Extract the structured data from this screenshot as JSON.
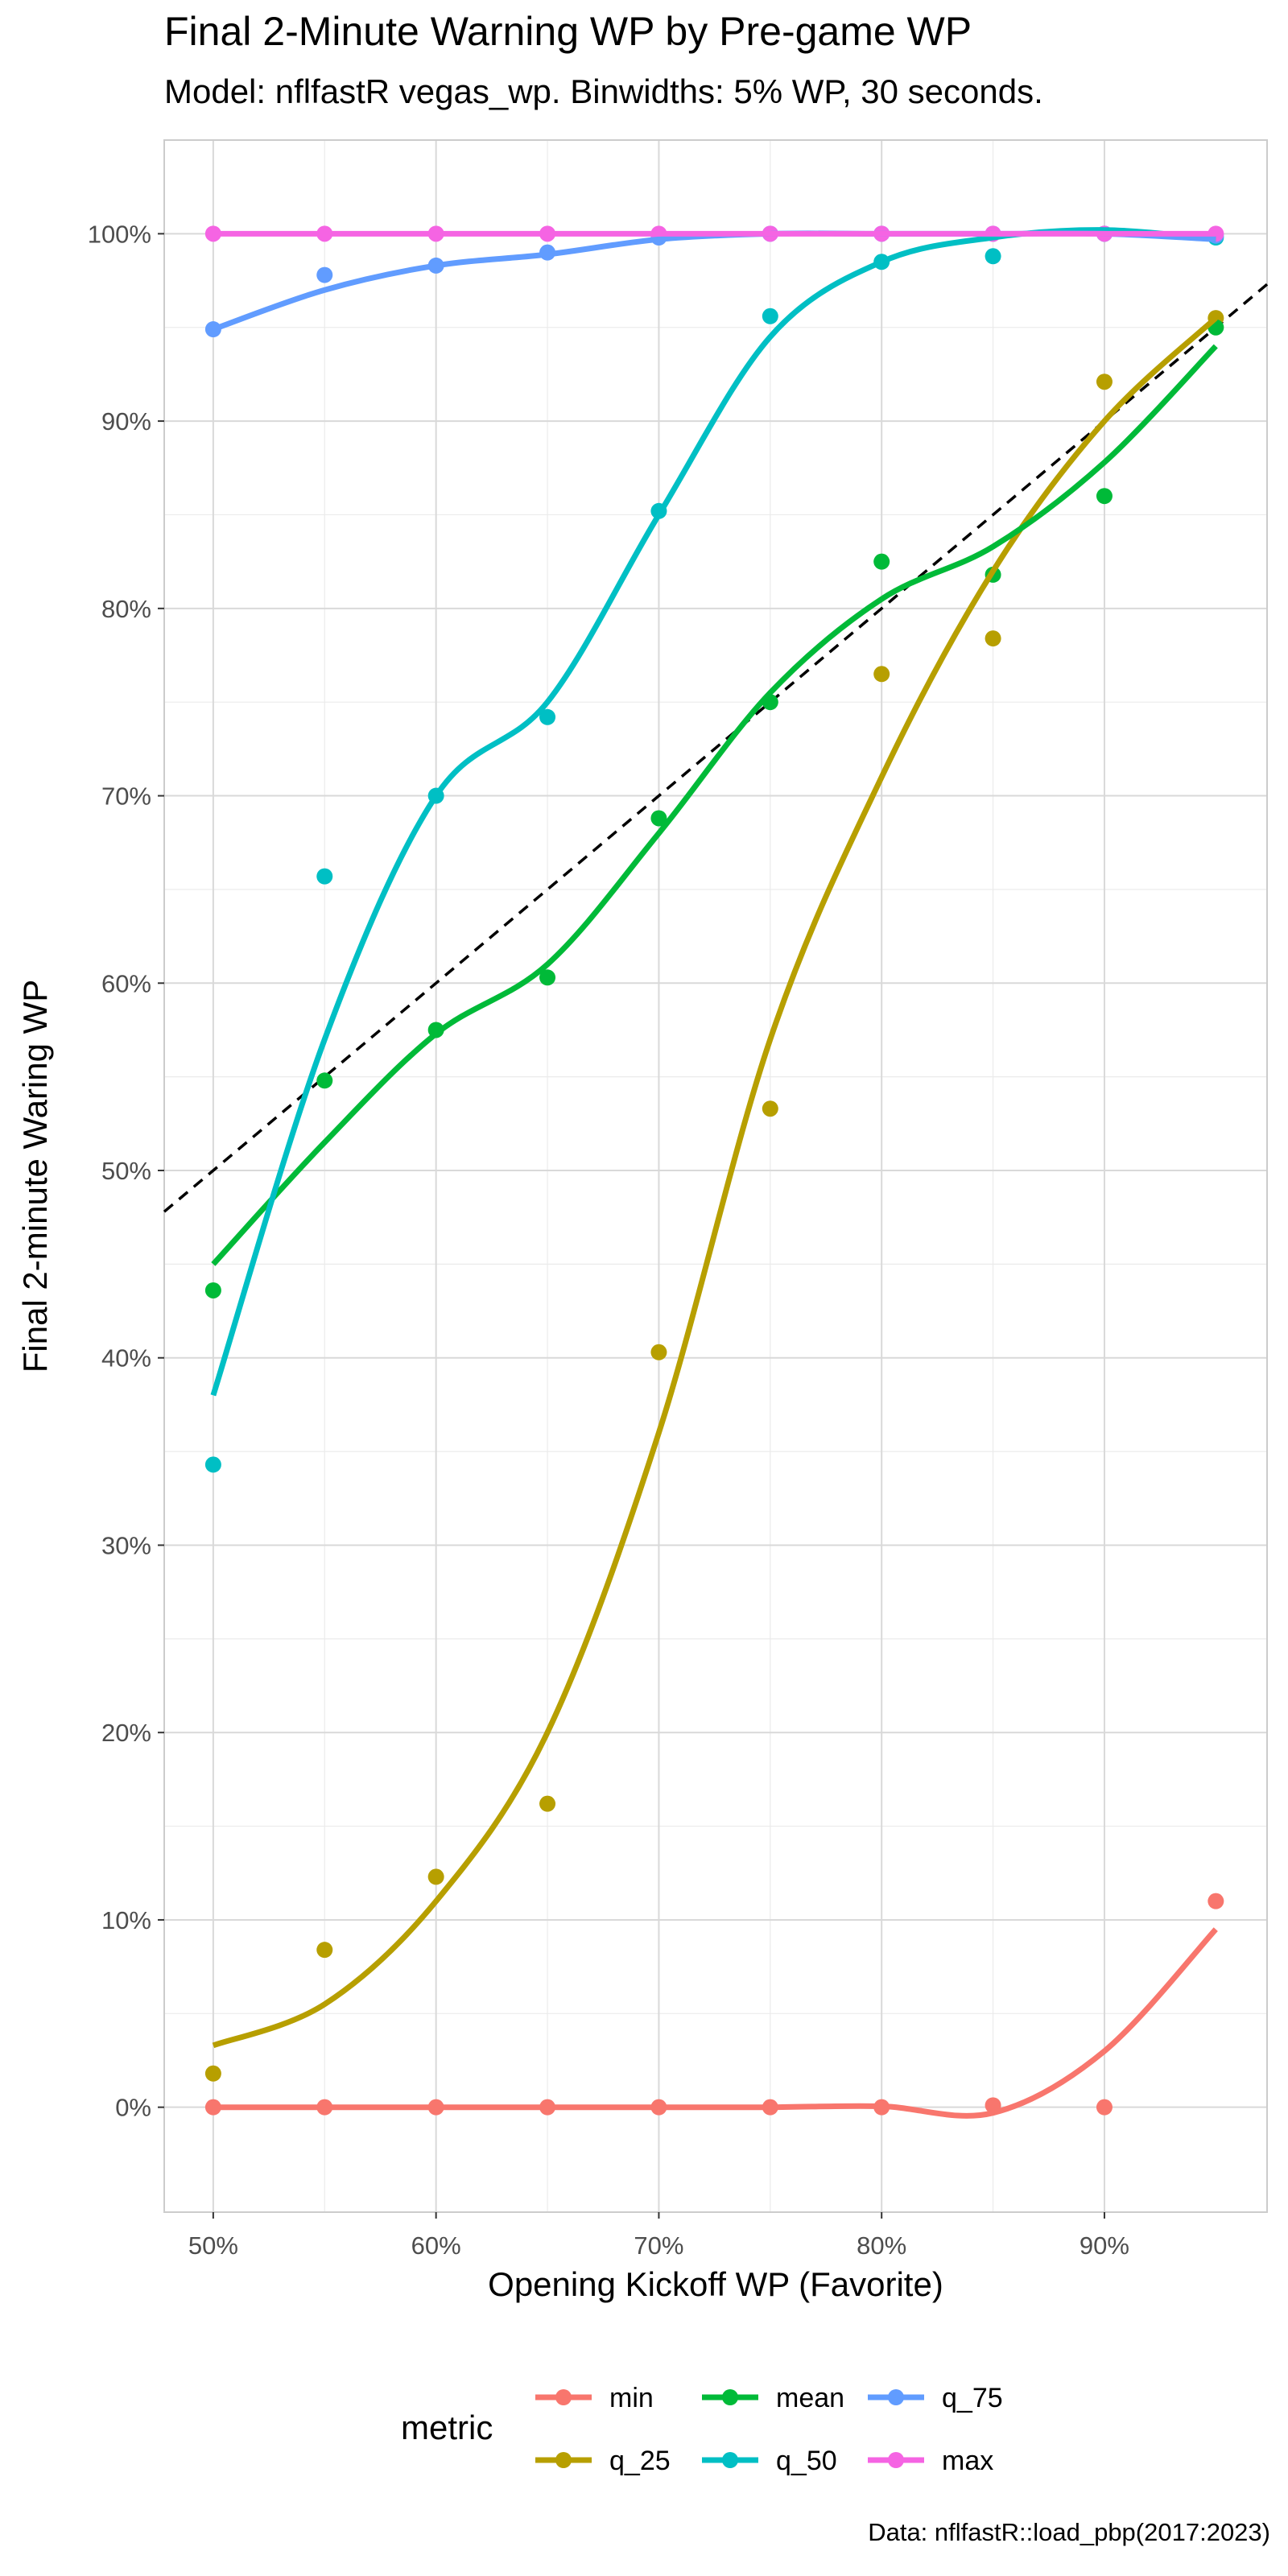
{
  "chart_data": {
    "type": "scatter",
    "title": "Final 2-Minute Warning WP by Pre-game WP",
    "subtitle": "Model: nflfastR vegas_wp. Binwidths: 5% WP, 30 seconds.",
    "caption": "Data: nflfastR::load_pbp(2017:2023)",
    "xlabel": "Opening Kickoff WP (Favorite)",
    "ylabel": "Final 2-minute Waring WP",
    "xlim": [
      0.478,
      0.973
    ],
    "ylim": [
      -0.056,
      1.05
    ],
    "x_ticks": [
      0.5,
      0.6,
      0.7,
      0.8,
      0.9
    ],
    "x_tick_labels": [
      "50%",
      "60%",
      "70%",
      "80%",
      "90%"
    ],
    "y_ticks": [
      0,
      0.1,
      0.2,
      0.3,
      0.4,
      0.5,
      0.6,
      0.7,
      0.8,
      0.9,
      1.0
    ],
    "y_tick_labels": [
      "0%",
      "10%",
      "20%",
      "30%",
      "40%",
      "50%",
      "60%",
      "70%",
      "80%",
      "90%",
      "100%"
    ],
    "grid": true,
    "legend": {
      "title": "metric",
      "position": "bottom"
    },
    "reference_line": {
      "style": "dashed",
      "color": "#000000",
      "slope": 1,
      "intercept": 0
    },
    "x": [
      0.5,
      0.55,
      0.6,
      0.65,
      0.7,
      0.75,
      0.8,
      0.85,
      0.9,
      0.95
    ],
    "series": [
      {
        "name": "min",
        "color": "#F8766D",
        "points": [
          0.0,
          0.0,
          0.0,
          0.0,
          0.0,
          0.0,
          0.0,
          0.001,
          0.0,
          0.11
        ],
        "smooth": [
          0.0,
          0.0,
          0.0,
          0.0,
          0.0,
          0.0,
          0.0005,
          -0.003,
          0.03,
          0.095
        ]
      },
      {
        "name": "q_25",
        "color": "#B79F00",
        "points": [
          0.018,
          0.084,
          0.123,
          0.162,
          0.403,
          0.533,
          0.765,
          0.784,
          0.921,
          0.955
        ],
        "smooth": [
          0.033,
          0.055,
          0.11,
          0.2,
          0.36,
          0.57,
          0.71,
          0.82,
          0.9,
          0.955
        ]
      },
      {
        "name": "mean",
        "color": "#00BA38",
        "points": [
          0.436,
          0.548,
          0.575,
          0.603,
          0.688,
          0.75,
          0.825,
          0.818,
          0.86,
          0.95
        ],
        "smooth": [
          0.45,
          0.515,
          0.573,
          0.61,
          0.68,
          0.755,
          0.805,
          0.833,
          0.878,
          0.94
        ]
      },
      {
        "name": "q_50",
        "color": "#00BFC4",
        "points": [
          0.343,
          0.657,
          0.7,
          0.742,
          0.852,
          0.956,
          0.985,
          0.988,
          1.0,
          0.998
        ],
        "smooth": [
          0.38,
          0.57,
          0.7,
          0.75,
          0.85,
          0.945,
          0.985,
          0.998,
          1.002,
          0.997
        ]
      },
      {
        "name": "q_75",
        "color": "#619CFF",
        "points": [
          0.949,
          0.978,
          0.983,
          0.99,
          0.998,
          1.0,
          1.0,
          1.0,
          1.0,
          0.999
        ],
        "smooth": [
          0.949,
          0.97,
          0.983,
          0.989,
          0.997,
          1.0,
          1.0,
          1.0,
          1.0,
          0.997
        ]
      },
      {
        "name": "max",
        "color": "#F564E3",
        "points": [
          1.0,
          1.0,
          1.0,
          1.0,
          1.0,
          1.0,
          1.0,
          1.0,
          1.0,
          1.0
        ],
        "smooth": [
          1.0,
          1.0,
          1.0,
          1.0,
          1.0,
          1.0,
          1.0,
          1.0,
          1.0,
          1.0
        ]
      }
    ]
  }
}
